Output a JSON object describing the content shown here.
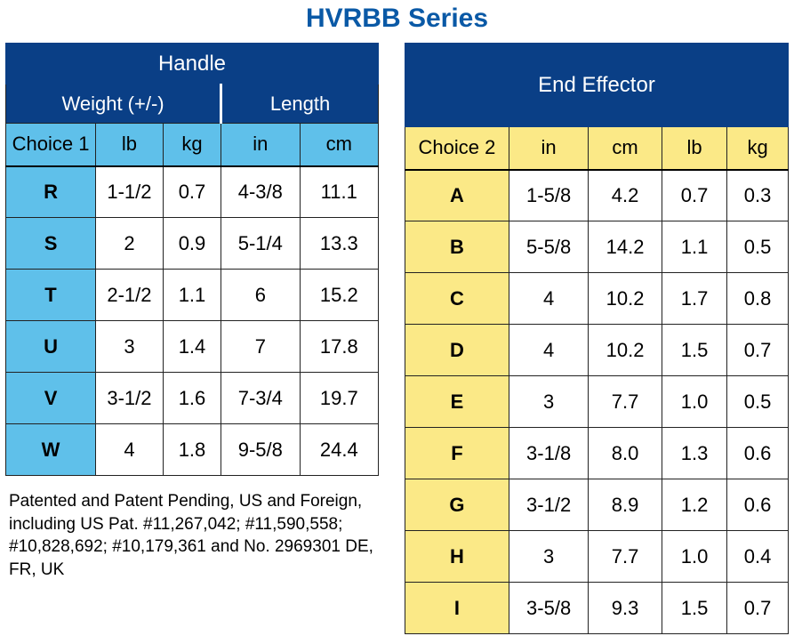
{
  "title": "HVRBB Series",
  "title_color": "#0a59a6",
  "handle": {
    "header": "Handle",
    "sub_weight": "Weight (+/-)",
    "sub_length": "Length",
    "choice_label": "Choice 1",
    "units": {
      "lb": "lb",
      "kg": "kg",
      "in": "in",
      "cm": "cm"
    },
    "rows": [
      {
        "label": "R",
        "lb": "1-1/2",
        "kg": "0.7",
        "in": "4-3/8",
        "cm": "11.1"
      },
      {
        "label": "S",
        "lb": "2",
        "kg": "0.9",
        "in": "5-1/4",
        "cm": "13.3"
      },
      {
        "label": "T",
        "lb": "2-1/2",
        "kg": "1.1",
        "in": "6",
        "cm": "15.2"
      },
      {
        "label": "U",
        "lb": "3",
        "kg": "1.4",
        "in": "7",
        "cm": "17.8"
      },
      {
        "label": "V",
        "lb": "3-1/2",
        "kg": "1.6",
        "in": "7-3/4",
        "cm": "19.7"
      },
      {
        "label": "W",
        "lb": "4",
        "kg": "1.8",
        "in": "9-5/8",
        "cm": "24.4"
      }
    ],
    "header_bg": "#0a3f86",
    "choice_bg": "#5fc0ea"
  },
  "end_effector": {
    "header": "End Effector",
    "choice_label": "Choice 2",
    "units": {
      "in": "in",
      "cm": "cm",
      "lb": "lb",
      "kg": "kg"
    },
    "rows": [
      {
        "label": "A",
        "in": "1-5/8",
        "cm": "4.2",
        "lb": "0.7",
        "kg": "0.3"
      },
      {
        "label": "B",
        "in": "5-5/8",
        "cm": "14.2",
        "lb": "1.1",
        "kg": "0.5"
      },
      {
        "label": "C",
        "in": "4",
        "cm": "10.2",
        "lb": "1.7",
        "kg": "0.8"
      },
      {
        "label": "D",
        "in": "4",
        "cm": "10.2",
        "lb": "1.5",
        "kg": "0.7"
      },
      {
        "label": "E",
        "in": "3",
        "cm": "7.7",
        "lb": "1.0",
        "kg": "0.5"
      },
      {
        "label": "F",
        "in": "3-1/8",
        "cm": "8.0",
        "lb": "1.3",
        "kg": "0.6"
      },
      {
        "label": "G",
        "in": "3-1/2",
        "cm": "8.9",
        "lb": "1.2",
        "kg": "0.6"
      },
      {
        "label": "H",
        "in": "3",
        "cm": "7.7",
        "lb": "1.0",
        "kg": "0.4"
      },
      {
        "label": "I",
        "in": "3-5/8",
        "cm": "9.3",
        "lb": "1.5",
        "kg": "0.7"
      }
    ],
    "header_bg": "#0a3f86",
    "choice_bg": "#fbe987"
  },
  "patent_text": "Patented and Patent Pending, US and Foreign, including US Pat. #11,267,042; #11,590,558; #10,828,692; #10,179,361 and No. 2969301 DE, FR, UK"
}
